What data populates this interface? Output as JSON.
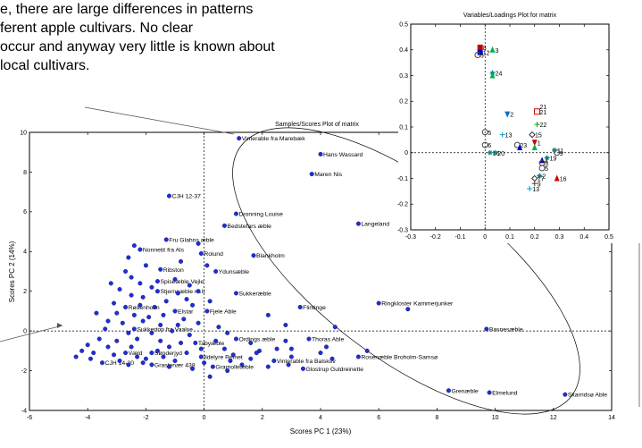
{
  "intro": {
    "lines": [
      "e, there are large differences in patterns",
      "ferent apple cultivars. No clear",
      "occur and anyway very little is known about",
      " local cultivars."
    ]
  },
  "chart_data": [
    {
      "type": "scatter",
      "title": "Samples/Scores Plot of matrix",
      "xlabel": "Scores PC 1 (23%)",
      "ylabel": "Scores PC 2 (14%)",
      "xlim": [
        -6,
        14
      ],
      "ylim": [
        -4,
        10
      ],
      "xticks": [
        -6,
        -4,
        -2,
        0,
        2,
        4,
        6,
        8,
        10,
        12,
        14
      ],
      "yticks": [
        -4,
        -2,
        0,
        2,
        4,
        6,
        8,
        10
      ],
      "grid": false,
      "color": "#1f2fd6",
      "points": [
        {
          "x": 1.2,
          "y": 9.7,
          "label": "Vinterable fra Marebæk"
        },
        {
          "x": 4.0,
          "y": 8.9,
          "label": "Hans Wassard"
        },
        {
          "x": 3.7,
          "y": 7.9,
          "label": "Maren Nis"
        },
        {
          "x": -1.2,
          "y": 6.8,
          "label": "CJH 12-37"
        },
        {
          "x": 1.1,
          "y": 5.9,
          "label": "Dronning Louise"
        },
        {
          "x": 0.7,
          "y": 5.3,
          "label": "Bedstefars æble"
        },
        {
          "x": 5.3,
          "y": 5.4,
          "label": "Langeland"
        },
        {
          "x": -1.3,
          "y": 4.6,
          "label": "Fru Glahns æble"
        },
        {
          "x": -2.2,
          "y": 4.1,
          "label": "Nonnetit fra Als"
        },
        {
          "x": -0.1,
          "y": 3.9,
          "label": "Rolund"
        },
        {
          "x": 1.7,
          "y": 3.8,
          "label": "Blankholm"
        },
        {
          "x": -1.5,
          "y": 3.1,
          "label": "Ribston"
        },
        {
          "x": 0.4,
          "y": 3.0,
          "label": "Ydunsæble"
        },
        {
          "x": -1.6,
          "y": 2.5,
          "label": "Spiseæble Vejle"
        },
        {
          "x": -1.6,
          "y": 2.0,
          "label": "Stjerneæble nr.II"
        },
        {
          "x": 1.1,
          "y": 1.9,
          "label": "Sukkeræble"
        },
        {
          "x": -2.7,
          "y": 1.2,
          "label": "Rødenholm"
        },
        {
          "x": -1.0,
          "y": 1.0,
          "label": "Elstar"
        },
        {
          "x": 0.1,
          "y": 1.0,
          "label": "Fjele Able"
        },
        {
          "x": 3.3,
          "y": 1.2,
          "label": "Flintinge"
        },
        {
          "x": 6.0,
          "y": 1.4,
          "label": "Ringkloster Kammerjunker"
        },
        {
          "x": 9.7,
          "y": 0.1,
          "label": "Basnesæble"
        },
        {
          "x": -2.4,
          "y": 0.1,
          "label": "Sukkertop fra Vaalse"
        },
        {
          "x": 1.1,
          "y": -0.4,
          "label": "Ordings æble"
        },
        {
          "x": 3.6,
          "y": -0.4,
          "label": "Thoras Able"
        },
        {
          "x": -0.3,
          "y": -0.6,
          "label": "Tabyæble"
        },
        {
          "x": -2.7,
          "y": -1.1,
          "label": "Væld"
        },
        {
          "x": -1.8,
          "y": -1.1,
          "label": "Sønderjyd"
        },
        {
          "x": -0.1,
          "y": -1.3,
          "label": "Ildelyre Reinet"
        },
        {
          "x": 2.4,
          "y": -1.5,
          "label": "Vinterable fra Balskov"
        },
        {
          "x": 5.3,
          "y": -1.3,
          "label": "Rosenæble Broholm-Samsø"
        },
        {
          "x": -3.5,
          "y": -1.6,
          "label": "CJH 14-20"
        },
        {
          "x": -1.8,
          "y": -1.7,
          "label": "Grastenær 438"
        },
        {
          "x": 0.3,
          "y": -1.8,
          "label": "Gramolleæble"
        },
        {
          "x": 3.4,
          "y": -1.9,
          "label": "Glostrup Guldreinette"
        },
        {
          "x": 8.4,
          "y": -3.0,
          "label": "Grenæble"
        },
        {
          "x": 9.8,
          "y": -3.1,
          "label": "Elmelund"
        },
        {
          "x": 12.4,
          "y": -3.2,
          "label": "Skarridsø Able"
        },
        {
          "x": -0.2,
          "y": 4.4,
          "label": ""
        },
        {
          "x": -0.8,
          "y": 3.5,
          "label": ""
        },
        {
          "x": -2.6,
          "y": 3.7,
          "label": ""
        },
        {
          "x": -2.0,
          "y": 3.3,
          "label": ""
        },
        {
          "x": -2.7,
          "y": 3.0,
          "label": ""
        },
        {
          "x": -2.5,
          "y": 2.7,
          "label": ""
        },
        {
          "x": -2.2,
          "y": 2.4,
          "label": ""
        },
        {
          "x": -1.8,
          "y": 2.2,
          "label": ""
        },
        {
          "x": -1.0,
          "y": 2.6,
          "label": ""
        },
        {
          "x": -0.5,
          "y": 2.3,
          "label": ""
        },
        {
          "x": -0.2,
          "y": 2.0,
          "label": ""
        },
        {
          "x": -2.9,
          "y": 2.1,
          "label": ""
        },
        {
          "x": -2.5,
          "y": 1.8,
          "label": ""
        },
        {
          "x": -2.1,
          "y": 1.7,
          "label": ""
        },
        {
          "x": -1.3,
          "y": 1.5,
          "label": ""
        },
        {
          "x": -0.6,
          "y": 1.6,
          "label": ""
        },
        {
          "x": 0.2,
          "y": 1.5,
          "label": ""
        },
        {
          "x": -3.1,
          "y": 1.4,
          "label": ""
        },
        {
          "x": -2.2,
          "y": 1.3,
          "label": ""
        },
        {
          "x": -1.7,
          "y": 1.2,
          "label": ""
        },
        {
          "x": -0.4,
          "y": 1.3,
          "label": ""
        },
        {
          "x": -3.0,
          "y": 0.9,
          "label": ""
        },
        {
          "x": -2.4,
          "y": 0.8,
          "label": ""
        },
        {
          "x": -1.9,
          "y": 0.7,
          "label": ""
        },
        {
          "x": -1.4,
          "y": 0.8,
          "label": ""
        },
        {
          "x": -0.7,
          "y": 0.6,
          "label": ""
        },
        {
          "x": -3.3,
          "y": 0.5,
          "label": ""
        },
        {
          "x": -2.8,
          "y": 0.4,
          "label": ""
        },
        {
          "x": -2.1,
          "y": 0.5,
          "label": ""
        },
        {
          "x": -1.5,
          "y": 0.3,
          "label": ""
        },
        {
          "x": -0.9,
          "y": 0.3,
          "label": ""
        },
        {
          "x": -0.2,
          "y": 0.4,
          "label": ""
        },
        {
          "x": 0.5,
          "y": 0.2,
          "label": ""
        },
        {
          "x": -3.4,
          "y": 0.1,
          "label": ""
        },
        {
          "x": -2.6,
          "y": -0.1,
          "label": ""
        },
        {
          "x": -1.8,
          "y": -0.1,
          "label": ""
        },
        {
          "x": -1.1,
          "y": 0.0,
          "label": ""
        },
        {
          "x": -0.5,
          "y": -0.2,
          "label": ""
        },
        {
          "x": 0.8,
          "y": -0.1,
          "label": ""
        },
        {
          "x": -3.6,
          "y": -0.4,
          "label": ""
        },
        {
          "x": -3.0,
          "y": -0.5,
          "label": ""
        },
        {
          "x": -2.3,
          "y": -0.4,
          "label": ""
        },
        {
          "x": -1.5,
          "y": -0.5,
          "label": ""
        },
        {
          "x": -0.8,
          "y": -0.6,
          "label": ""
        },
        {
          "x": 0.4,
          "y": -0.5,
          "label": ""
        },
        {
          "x": 1.6,
          "y": -0.6,
          "label": ""
        },
        {
          "x": 2.8,
          "y": -0.5,
          "label": ""
        },
        {
          "x": -4.0,
          "y": -0.7,
          "label": ""
        },
        {
          "x": -3.3,
          "y": -0.8,
          "label": ""
        },
        {
          "x": -2.5,
          "y": -0.8,
          "label": ""
        },
        {
          "x": -1.2,
          "y": -0.8,
          "label": ""
        },
        {
          "x": 0.7,
          "y": -0.9,
          "label": ""
        },
        {
          "x": 1.9,
          "y": -1.0,
          "label": ""
        },
        {
          "x": 3.0,
          "y": -0.9,
          "label": ""
        },
        {
          "x": 4.2,
          "y": -0.8,
          "label": ""
        },
        {
          "x": -4.2,
          "y": -1.0,
          "label": ""
        },
        {
          "x": -3.8,
          "y": -1.1,
          "label": ""
        },
        {
          "x": -3.1,
          "y": -1.2,
          "label": ""
        },
        {
          "x": -2.3,
          "y": -1.3,
          "label": ""
        },
        {
          "x": -1.4,
          "y": -1.3,
          "label": ""
        },
        {
          "x": -0.6,
          "y": -1.1,
          "label": ""
        },
        {
          "x": 1.0,
          "y": -1.2,
          "label": ""
        },
        {
          "x": 1.6,
          "y": -1.4,
          "label": ""
        },
        {
          "x": 3.0,
          "y": -1.3,
          "label": ""
        },
        {
          "x": 4.4,
          "y": -1.4,
          "label": ""
        },
        {
          "x": -3.9,
          "y": -1.4,
          "label": ""
        },
        {
          "x": -2.9,
          "y": -1.5,
          "label": ""
        },
        {
          "x": -2.1,
          "y": -1.6,
          "label": ""
        },
        {
          "x": -1.0,
          "y": -1.5,
          "label": ""
        },
        {
          "x": 0.0,
          "y": -1.6,
          "label": ""
        },
        {
          "x": 1.3,
          "y": -1.7,
          "label": ""
        },
        {
          "x": 2.2,
          "y": -1.8,
          "label": ""
        },
        {
          "x": 2.9,
          "y": -1.7,
          "label": ""
        },
        {
          "x": -0.4,
          "y": -1.9,
          "label": ""
        },
        {
          "x": 0.8,
          "y": -2.0,
          "label": ""
        },
        {
          "x": 1.8,
          "y": -1.1,
          "label": ""
        },
        {
          "x": -1.6,
          "y": -1.0,
          "label": ""
        },
        {
          "x": -2.0,
          "y": -1.4,
          "label": ""
        },
        {
          "x": -2.6,
          "y": -1.7,
          "label": ""
        },
        {
          "x": -0.1,
          "y": -0.9,
          "label": ""
        },
        {
          "x": 0.9,
          "y": -1.5,
          "label": ""
        },
        {
          "x": 2.5,
          "y": -0.9,
          "label": ""
        },
        {
          "x": 4.0,
          "y": -1.1,
          "label": ""
        },
        {
          "x": 5.6,
          "y": -1.0,
          "label": ""
        },
        {
          "x": 7.0,
          "y": 1.1,
          "label": ""
        },
        {
          "x": 2.2,
          "y": 0.8,
          "label": ""
        },
        {
          "x": 2.8,
          "y": 0.3,
          "label": ""
        },
        {
          "x": 4.5,
          "y": 0.2,
          "label": ""
        },
        {
          "x": -3.7,
          "y": 0.9,
          "label": ""
        },
        {
          "x": -4.4,
          "y": -1.3,
          "label": ""
        },
        {
          "x": -1.2,
          "y": -1.8,
          "label": ""
        },
        {
          "x": 0.2,
          "y": -2.3,
          "label": ""
        },
        {
          "x": -0.9,
          "y": 1.9,
          "label": ""
        },
        {
          "x": -3.2,
          "y": 2.4,
          "label": ""
        },
        {
          "x": -2.4,
          "y": 4.3,
          "label": ""
        },
        {
          "x": 0.1,
          "y": 3.3,
          "label": ""
        }
      ]
    },
    {
      "type": "scatter",
      "title": "Variables/Loadings Plot for matrix",
      "xlim": [
        -0.3,
        0.5
      ],
      "ylim": [
        -0.3,
        0.5
      ],
      "xticks": [
        -0.3,
        -0.2,
        -0.1,
        0,
        0.1,
        0.2,
        0.3,
        0.4,
        0.5
      ],
      "yticks": [
        -0.3,
        -0.2,
        -0.1,
        0,
        0.1,
        0.2,
        0.3,
        0.4,
        0.5
      ],
      "grid": false,
      "points": [
        {
          "x": -0.02,
          "y": 0.41,
          "label": "8",
          "marker": "square",
          "color": "#c00000"
        },
        {
          "x": 0.03,
          "y": 0.4,
          "label": "3",
          "marker": "triangle-up",
          "color": "#00b050"
        },
        {
          "x": -0.02,
          "y": 0.39,
          "label": "12",
          "marker": "square",
          "color": "#0000cc"
        },
        {
          "x": -0.03,
          "y": 0.38,
          "label": "5",
          "marker": "circle",
          "color": "#444444"
        },
        {
          "x": 0.03,
          "y": 0.31,
          "label": "24",
          "marker": "star",
          "color": "#008080"
        },
        {
          "x": 0.03,
          "y": 0.3,
          "label": "",
          "marker": "triangle-up",
          "color": "#00b050"
        },
        {
          "x": 0.21,
          "y": 0.18,
          "label": "21",
          "marker": "none",
          "color": "#000000"
        },
        {
          "x": 0.21,
          "y": 0.16,
          "label": "21",
          "marker": "square-open",
          "color": "#cc0000"
        },
        {
          "x": 0.09,
          "y": 0.15,
          "label": "2",
          "marker": "triangle-down",
          "color": "#0070c0"
        },
        {
          "x": 0.21,
          "y": 0.11,
          "label": "22",
          "marker": "plus",
          "color": "#00a000"
        },
        {
          "x": 0.0,
          "y": 0.08,
          "label": "5",
          "marker": "circle",
          "color": "#444444"
        },
        {
          "x": 0.07,
          "y": 0.07,
          "label": "13",
          "marker": "plus",
          "color": "#00a0c0"
        },
        {
          "x": 0.19,
          "y": 0.07,
          "label": "15",
          "marker": "diamond-open",
          "color": "#000000"
        },
        {
          "x": 0.0,
          "y": 0.03,
          "label": "6",
          "marker": "circle",
          "color": "#444444"
        },
        {
          "x": 0.13,
          "y": 0.03,
          "label": "23",
          "marker": "circle",
          "color": "#444444"
        },
        {
          "x": 0.2,
          "y": 0.04,
          "label": "1",
          "marker": "triangle-down",
          "color": "#cc0000"
        },
        {
          "x": 0.14,
          "y": 0.02,
          "label": "",
          "marker": "triangle-up",
          "color": "#0000cc"
        },
        {
          "x": 0.2,
          "y": 0.02,
          "label": "",
          "marker": "triangle-up",
          "color": "#00b050"
        },
        {
          "x": 0.28,
          "y": 0.01,
          "label": "11",
          "marker": "star",
          "color": "#008080"
        },
        {
          "x": 0.02,
          "y": 0.0,
          "label": "16",
          "marker": "star",
          "color": "#008080"
        },
        {
          "x": 0.04,
          "y": 0.0,
          "label": "20",
          "marker": "star",
          "color": "#008080"
        },
        {
          "x": 0.29,
          "y": 0.0,
          "label": "9",
          "marker": "circle",
          "color": "#444444"
        },
        {
          "x": 0.25,
          "y": -0.02,
          "label": "19",
          "marker": "star",
          "color": "#008080"
        },
        {
          "x": 0.23,
          "y": -0.03,
          "label": "4",
          "marker": "triangle-up",
          "color": "#0000cc"
        },
        {
          "x": 0.23,
          "y": -0.04,
          "label": "3",
          "marker": "circle",
          "color": "#444444"
        },
        {
          "x": 0.23,
          "y": -0.06,
          "label": "5",
          "marker": "circle",
          "color": "#444444"
        },
        {
          "x": 0.22,
          "y": -0.09,
          "label": "2",
          "marker": "star",
          "color": "#008080"
        },
        {
          "x": 0.2,
          "y": -0.1,
          "label": "17",
          "marker": "diamond-open",
          "color": "#000000"
        },
        {
          "x": 0.29,
          "y": -0.1,
          "label": "16",
          "marker": "triangle-up",
          "color": "#cc0000"
        },
        {
          "x": 0.2,
          "y": -0.12,
          "label": "9",
          "marker": "plus",
          "color": "#444444"
        },
        {
          "x": 0.18,
          "y": -0.14,
          "label": "13",
          "marker": "plus",
          "color": "#00a0c0"
        }
      ]
    }
  ]
}
